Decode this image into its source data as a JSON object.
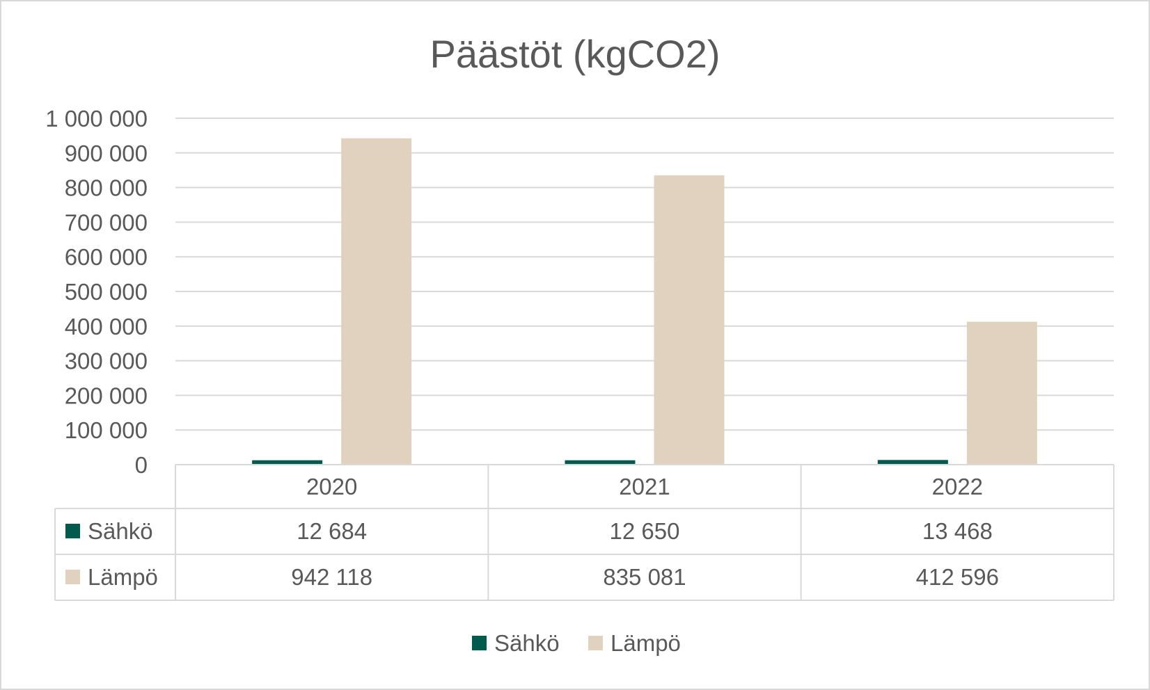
{
  "chart_data": {
    "type": "bar",
    "title": "Päästöt (kgCO2)",
    "categories": [
      "2020",
      "2021",
      "2022"
    ],
    "series": [
      {
        "name": "Sähkö",
        "values": [
          12684,
          12650,
          13468
        ],
        "labels": [
          "12 684",
          "12 650",
          "13 468"
        ],
        "color": "#005a4e"
      },
      {
        "name": "Lämpö",
        "values": [
          942118,
          835081,
          412596
        ],
        "labels": [
          "942 118",
          "835 081",
          "412 596"
        ],
        "color": "#e0d2bf"
      }
    ],
    "ylim": [
      0,
      1000000
    ],
    "yticks": [
      "0",
      "100 000",
      "200 000",
      "300 000",
      "400 000",
      "500 000",
      "600 000",
      "700 000",
      "800 000",
      "900 000",
      "1 000 000"
    ],
    "grid": true,
    "legend": "bottom",
    "data_table": true
  }
}
